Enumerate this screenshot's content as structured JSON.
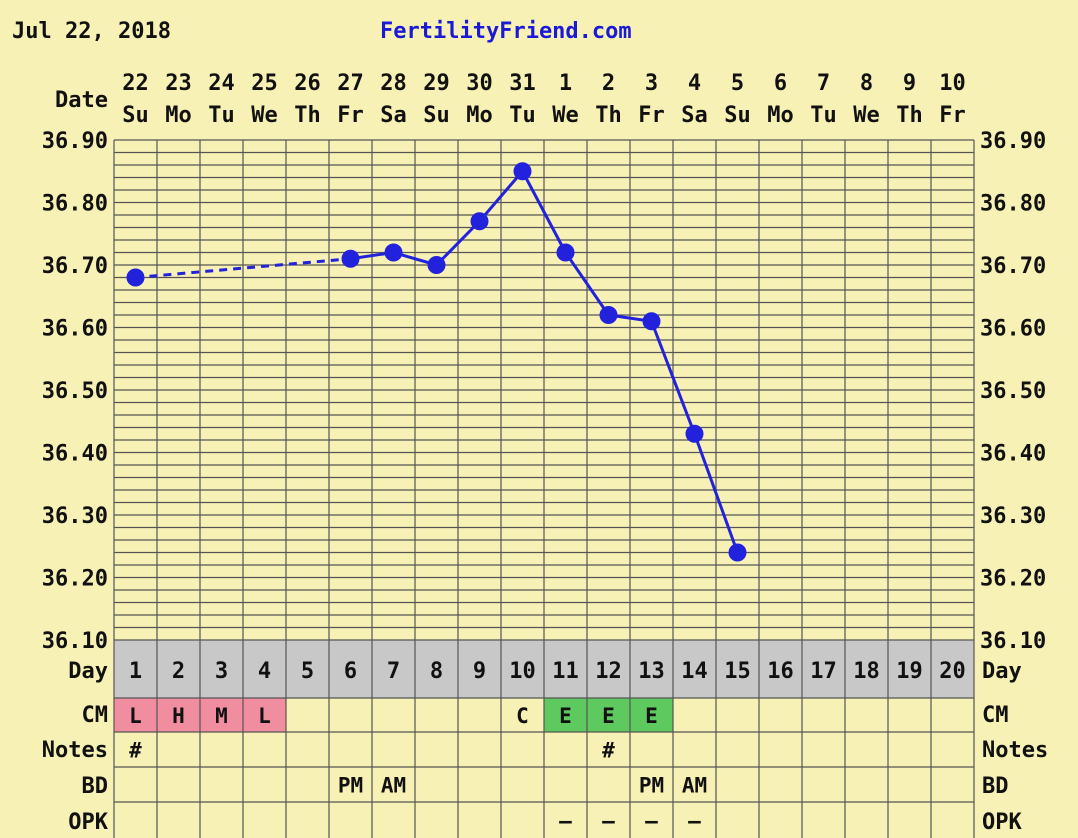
{
  "header": {
    "date": "Jul 22, 2018",
    "site": "FertilityFriend.com"
  },
  "row_labels": {
    "date": "Date",
    "day": "Day",
    "cm": "CM",
    "notes": "Notes",
    "bd": "BD",
    "opk": "OPK"
  },
  "colors": {
    "background": "#f8f1b6",
    "grid": "#555555",
    "line": "#2222dd",
    "site_link": "#1a1ad6",
    "day_row": "#c8c8c8",
    "cm_red": "#f08ea0",
    "cm_green": "#5ec95e"
  },
  "chart_data": {
    "type": "line",
    "dates": [
      "22",
      "23",
      "24",
      "25",
      "26",
      "27",
      "28",
      "29",
      "30",
      "31",
      "1",
      "2",
      "3",
      "4",
      "5",
      "6",
      "7",
      "8",
      "9",
      "10"
    ],
    "weekdays": [
      "Su",
      "Mo",
      "Tu",
      "We",
      "Th",
      "Fr",
      "Sa",
      "Su",
      "Mo",
      "Tu",
      "We",
      "Th",
      "Fr",
      "Sa",
      "Su",
      "Mo",
      "Tu",
      "We",
      "Th",
      "Fr"
    ],
    "cycle_days": [
      "1",
      "2",
      "3",
      "4",
      "5",
      "6",
      "7",
      "8",
      "9",
      "10",
      "11",
      "12",
      "13",
      "14",
      "15",
      "16",
      "17",
      "18",
      "19",
      "20"
    ],
    "temperatures": [
      36.68,
      null,
      null,
      null,
      null,
      36.71,
      36.72,
      36.7,
      36.77,
      36.85,
      36.72,
      36.62,
      36.61,
      36.43,
      36.24,
      null,
      null,
      null,
      null,
      null
    ],
    "ylim": [
      36.1,
      36.9
    ],
    "yticks": [
      "36.90",
      "36.80",
      "36.70",
      "36.60",
      "36.50",
      "36.40",
      "36.30",
      "36.20",
      "36.10"
    ],
    "ytick_values": [
      36.9,
      36.8,
      36.7,
      36.6,
      36.5,
      36.4,
      36.3,
      36.2,
      36.1
    ],
    "grid": true,
    "cm": [
      "L",
      "H",
      "M",
      "L",
      "",
      "",
      "",
      "",
      "",
      "C",
      "E",
      "E",
      "E",
      "",
      "",
      "",
      "",
      "",
      "",
      ""
    ],
    "cm_colors": [
      "red",
      "red",
      "red",
      "red",
      "",
      "",
      "",
      "",
      "",
      "",
      "green",
      "green",
      "green",
      "",
      "",
      "",
      "",
      "",
      "",
      ""
    ],
    "notes": [
      "#",
      "",
      "",
      "",
      "",
      "",
      "",
      "",
      "",
      "",
      "",
      "#",
      "",
      "",
      "",
      "",
      "",
      "",
      "",
      ""
    ],
    "bd": [
      "",
      "",
      "",
      "",
      "",
      "PM",
      "AM",
      "",
      "",
      "",
      "",
      "",
      "PM",
      "AM",
      "",
      "",
      "",
      "",
      "",
      ""
    ],
    "opk": [
      "",
      "",
      "",
      "",
      "",
      "",
      "",
      "",
      "",
      "",
      "–",
      "–",
      "–",
      "–",
      "",
      "",
      "",
      "",
      "",
      ""
    ]
  }
}
